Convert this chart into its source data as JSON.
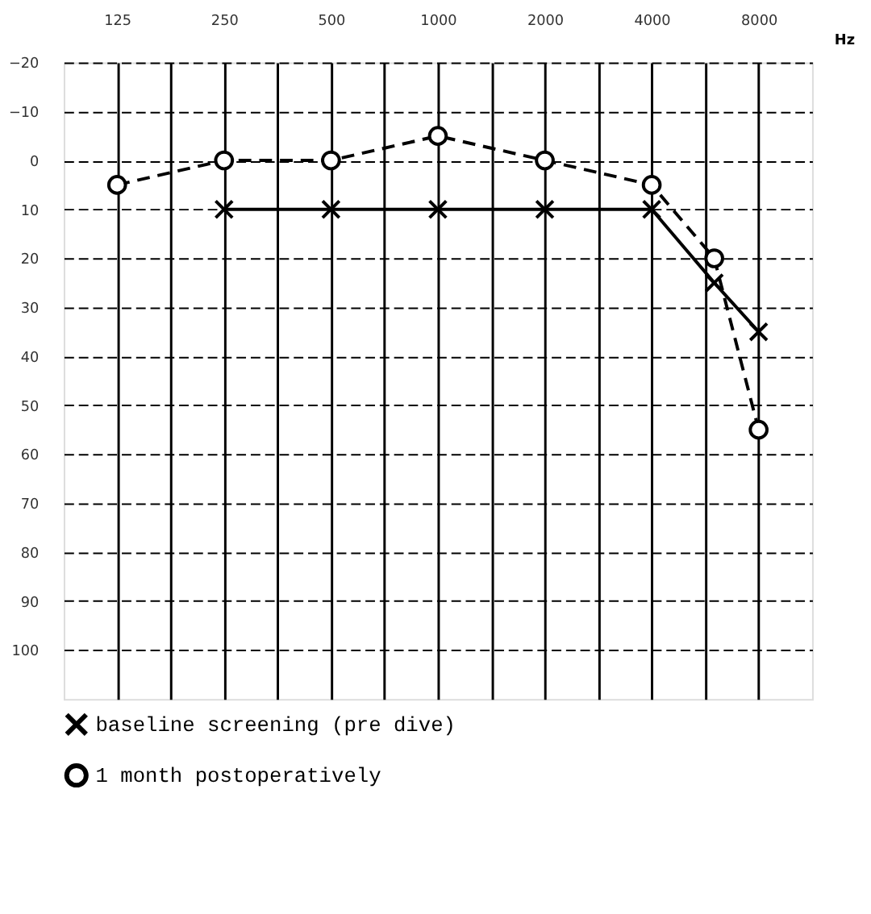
{
  "chart_data": {
    "type": "line",
    "xlabel": "Hz",
    "log": "x",
    "x": [
      125,
      250,
      500,
      1000,
      2000,
      4000,
      6000,
      8000
    ],
    "series": [
      {
        "name": "baseline screening (pre dive)",
        "color": "#000000",
        "marker": "cross",
        "line_style": "solid",
        "values": [
          null,
          10,
          10,
          10,
          10,
          10,
          25,
          35
        ]
      },
      {
        "name": "1 month postoperatively",
        "color": "#000000",
        "marker": "circle",
        "line_style": "dashed",
        "values": [
          5,
          0,
          0,
          -5,
          0,
          5,
          20,
          55
        ]
      }
    ],
    "xlim": [
      88.4,
      11314
    ],
    "xticks": [
      125,
      {
        "value": 176.8,
        "label": null
      },
      250,
      {
        "value": 353.6,
        "label": null
      },
      500,
      {
        "value": 707.1,
        "label": null
      },
      1000,
      {
        "value": 1414.2,
        "label": null
      },
      2000,
      {
        "value": 2828.4,
        "label": null
      },
      4000,
      {
        "value": 5656.9,
        "label": null
      },
      8000
    ],
    "ylim": [
      110,
      -20
    ],
    "yticks": [
      -20,
      -10,
      0,
      10,
      20,
      30,
      40,
      50,
      60,
      70,
      80,
      90,
      100
    ],
    "grid": true,
    "legend": "bottom"
  }
}
